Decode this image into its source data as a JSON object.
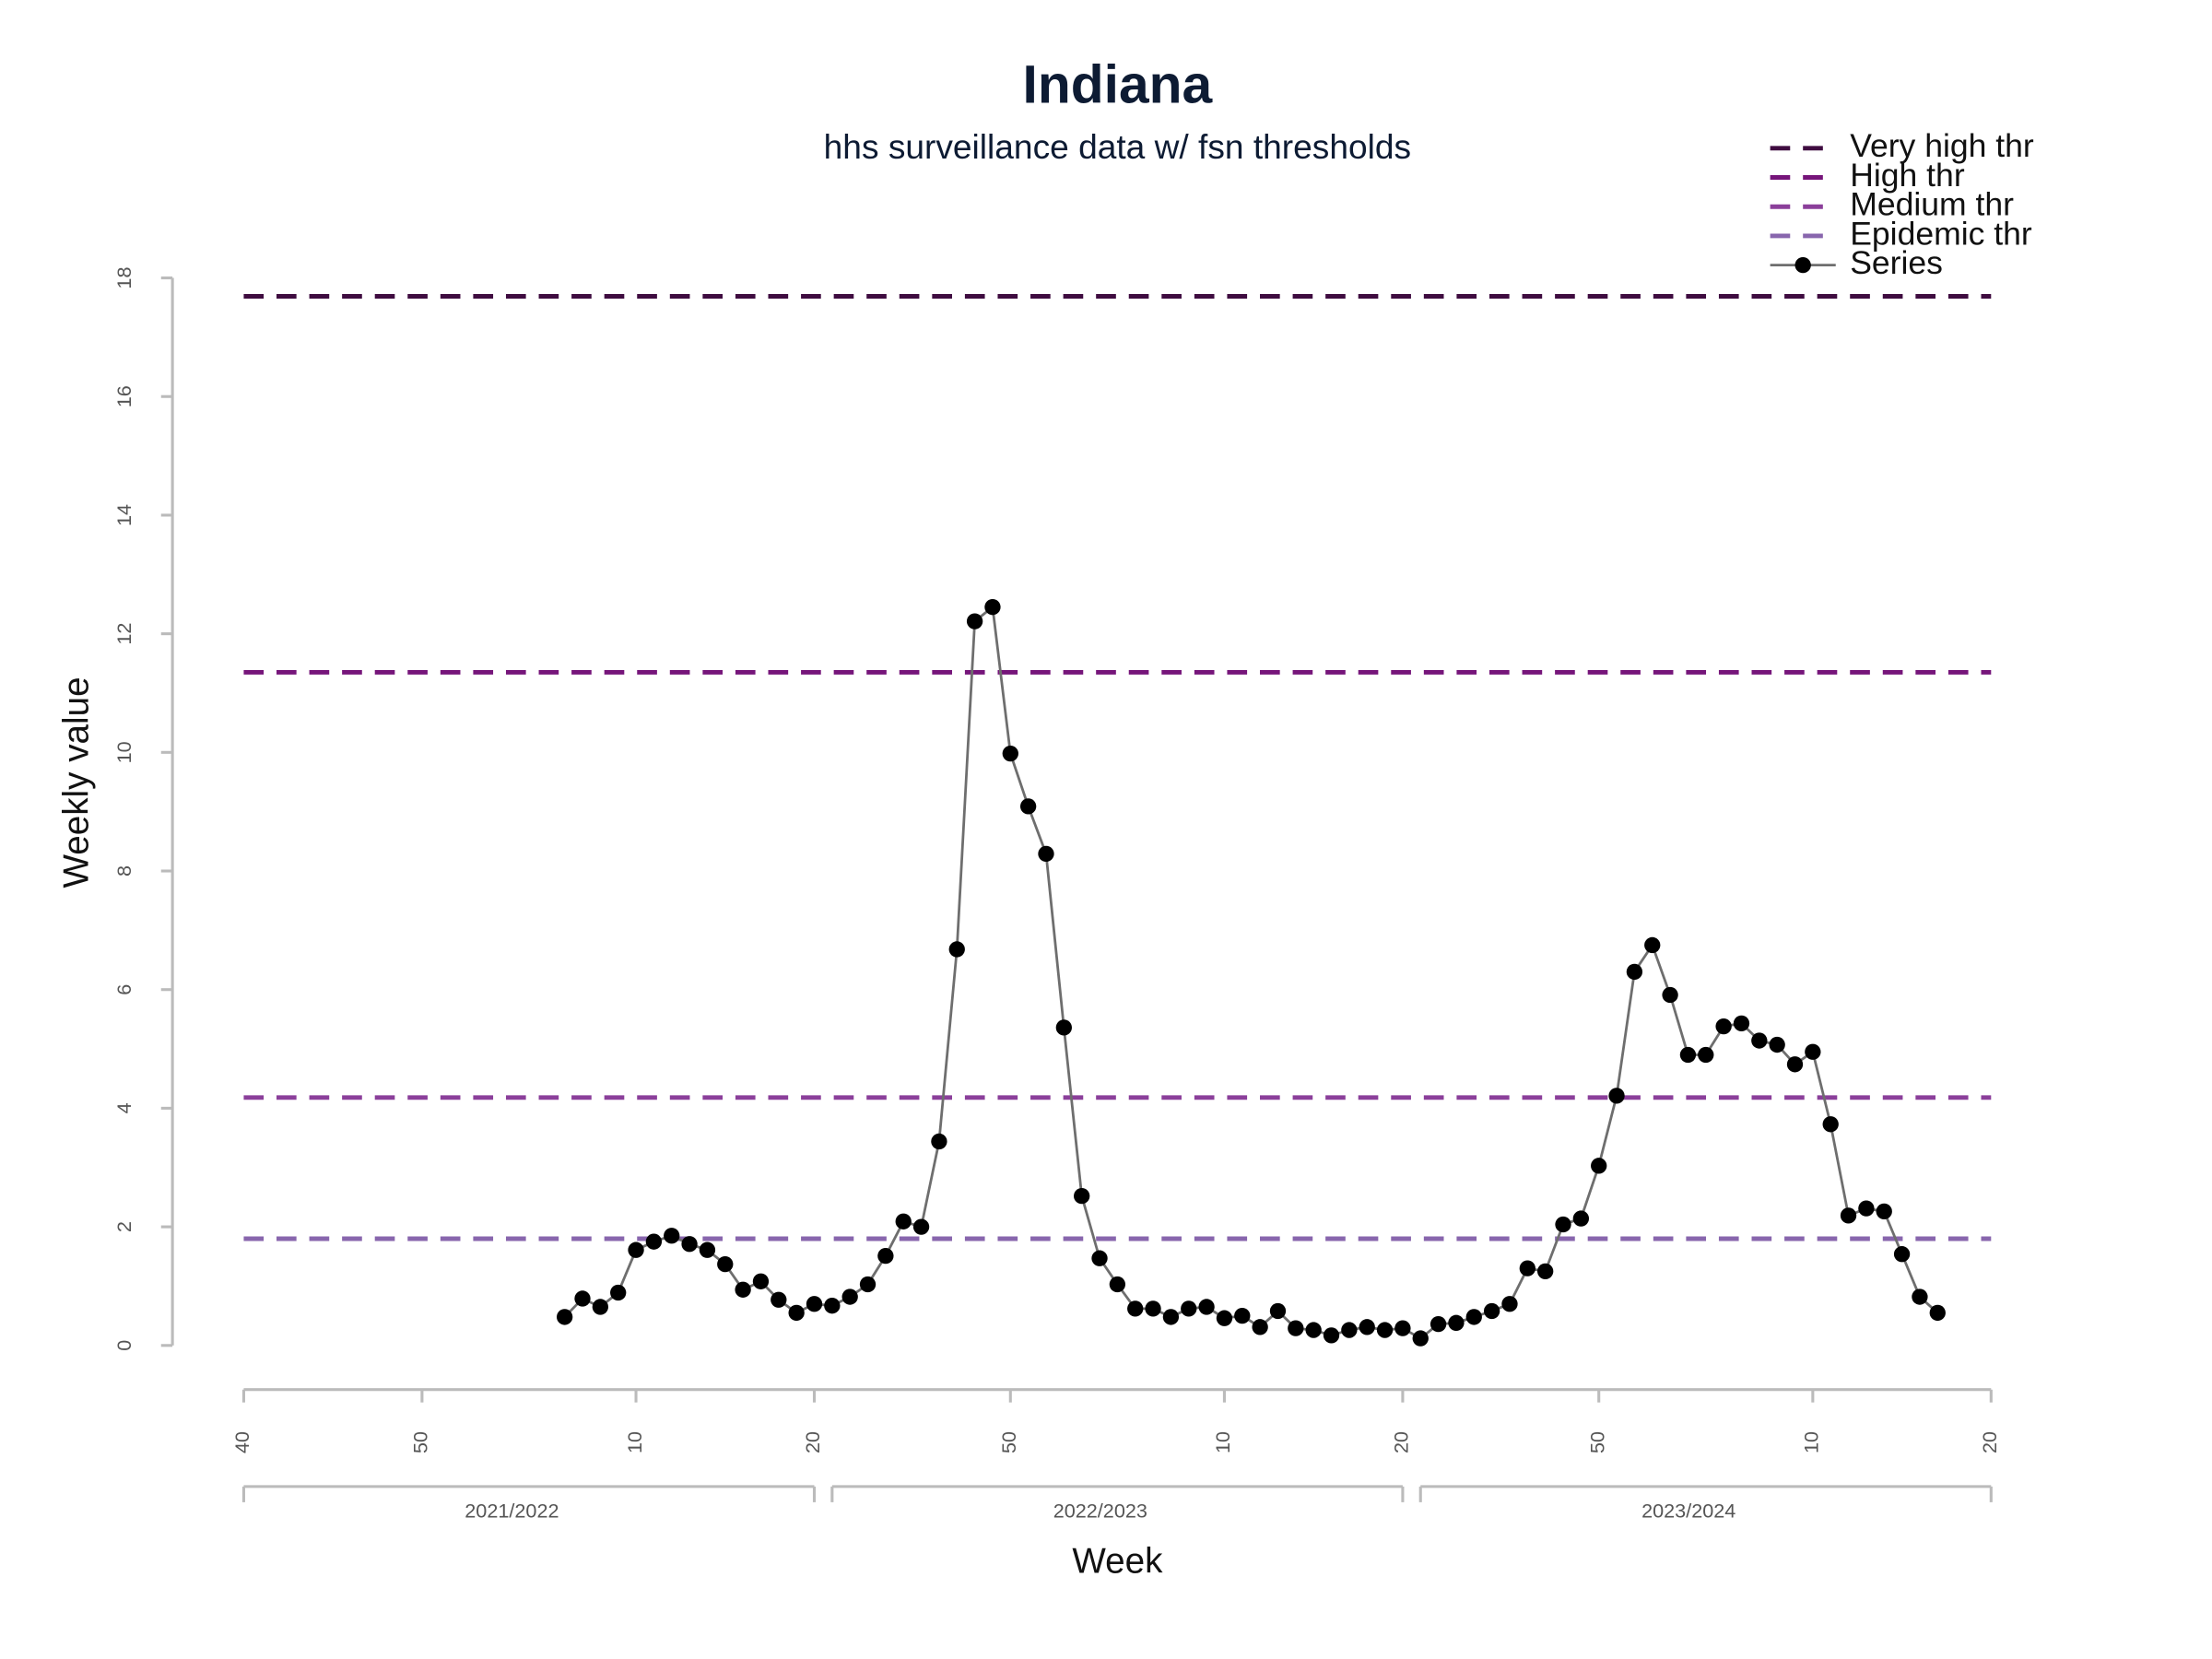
{
  "chart_data": {
    "type": "line",
    "title": "Indiana",
    "subtitle": "hhs surveillance data w/ fsn thresholds",
    "x_label": "Week",
    "y_label": "Weekly value",
    "xlim": [
      0,
      98
    ],
    "xticks": [
      {
        "value": 0,
        "label": "40"
      },
      {
        "value": 10,
        "label": "50"
      },
      {
        "value": 22,
        "label": "10"
      },
      {
        "value": 32,
        "label": "20"
      },
      {
        "value": 43,
        "label": "50"
      },
      {
        "value": 55,
        "label": "10"
      },
      {
        "value": 65,
        "label": "20"
      },
      {
        "value": 76,
        "label": "50"
      },
      {
        "value": 88,
        "label": "10"
      },
      {
        "value": 98,
        "label": "20"
      }
    ],
    "seasons": [
      {
        "label": "2021/2022",
        "range": [
          0,
          32
        ]
      },
      {
        "label": "2022/2023",
        "range": [
          33,
          65
        ]
      },
      {
        "label": "2023/2024",
        "range": [
          66,
          98
        ]
      }
    ],
    "ylim": [
      0,
      18
    ],
    "yticks": [
      0,
      2,
      4,
      6,
      8,
      10,
      12,
      14,
      16,
      18
    ],
    "legend": "top-right",
    "thresholds": [
      {
        "name": "Very high thr",
        "value": 17.69,
        "color": "#3f0c40"
      },
      {
        "name": "High thr",
        "value": 11.35,
        "color": "#76157a"
      },
      {
        "name": "Medium thr",
        "value": 4.18,
        "color": "#8b3f9a"
      },
      {
        "name": "Epidemic thr",
        "value": 1.8,
        "color": "#8866ad"
      }
    ],
    "series": [
      {
        "name": "Series",
        "color": "#6e6e6e",
        "marker_color": "#000000",
        "x": [
          18,
          19,
          20,
          21,
          22,
          23,
          24,
          25,
          26,
          27,
          28,
          29,
          30,
          31,
          32,
          33,
          34,
          35,
          36,
          37,
          38,
          39,
          40,
          41,
          42,
          43,
          44,
          45,
          46,
          47,
          48,
          49,
          50,
          51,
          52,
          53,
          54,
          55,
          56,
          57,
          58,
          59,
          60,
          61,
          62,
          63,
          64,
          65,
          66,
          67,
          68,
          69,
          70,
          71,
          72,
          73,
          74,
          75,
          76,
          77,
          78,
          79,
          80,
          81,
          82,
          83,
          84,
          85,
          86,
          87,
          88,
          89,
          90,
          91,
          92,
          93,
          94,
          95
        ],
        "values": [
          0.48,
          0.79,
          0.65,
          0.89,
          1.61,
          1.75,
          1.85,
          1.71,
          1.61,
          1.37,
          0.94,
          1.08,
          0.77,
          0.55,
          0.7,
          0.67,
          0.82,
          1.03,
          1.51,
          2.09,
          2.0,
          3.44,
          6.68,
          12.21,
          12.45,
          9.98,
          9.09,
          8.29,
          5.36,
          2.52,
          1.47,
          1.03,
          0.62,
          0.62,
          0.48,
          0.62,
          0.65,
          0.46,
          0.5,
          0.31,
          0.58,
          0.29,
          0.26,
          0.17,
          0.26,
          0.31,
          0.26,
          0.29,
          0.12,
          0.36,
          0.38,
          0.48,
          0.58,
          0.7,
          1.3,
          1.25,
          2.04,
          2.14,
          3.03,
          4.21,
          6.3,
          6.75,
          5.91,
          4.9,
          4.9,
          5.38,
          5.43,
          5.14,
          5.07,
          4.74,
          4.95,
          3.73,
          2.19,
          2.31,
          2.26,
          1.54,
          0.82,
          0.55
        ]
      }
    ]
  }
}
